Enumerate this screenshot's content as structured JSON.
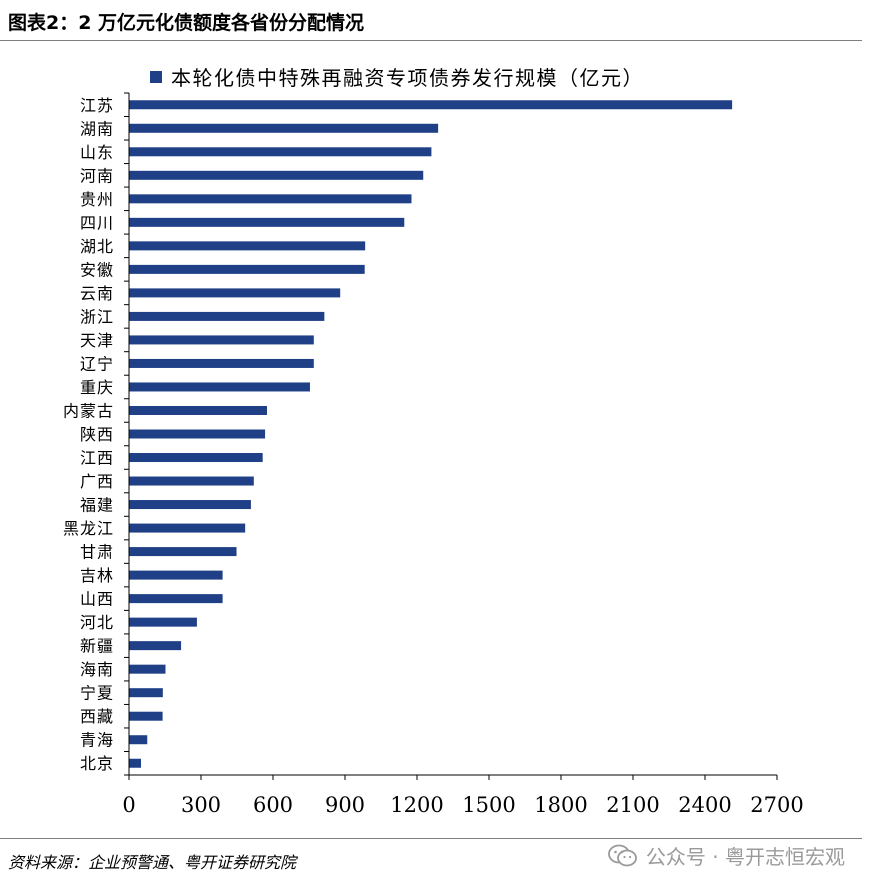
{
  "figure": {
    "title": "图表2：2 万亿元化债额度各省份分配情况",
    "source": "资料来源：企业预警通、粤开证券研究院",
    "watermark": "公众号 · 粤开志恒宏观",
    "watermark_icon": "wechat-icon"
  },
  "chart_data": {
    "type": "bar",
    "orientation": "horizontal",
    "categories": [
      "江苏",
      "湖南",
      "山东",
      "河南",
      "贵州",
      "四川",
      "湖北",
      "安徽",
      "云南",
      "浙江",
      "天津",
      "辽宁",
      "重庆",
      "内蒙古",
      "陕西",
      "江西",
      "广西",
      "福建",
      "黑龙江",
      "甘肃",
      "吉林",
      "山西",
      "河北",
      "新疆",
      "海南",
      "宁夏",
      "西藏",
      "青海",
      "北京"
    ],
    "series": [
      {
        "name": "本轮化债中特殊再融资专项债券发行规模（亿元）",
        "color": "#1f3f86",
        "values": [
          2513,
          1288,
          1260,
          1226,
          1177,
          1147,
          984,
          982,
          880,
          814,
          770,
          770,
          754,
          575,
          567,
          557,
          520,
          508,
          484,
          448,
          390,
          390,
          283,
          217,
          152,
          141,
          140,
          76,
          50
        ]
      }
    ],
    "xticks": [
      "0",
      "300",
      "600",
      "900",
      "1200",
      "1500",
      "1800",
      "2100",
      "2400",
      "2700"
    ],
    "xlim": [
      0,
      2700
    ],
    "legend_position": "top",
    "grid": false
  }
}
